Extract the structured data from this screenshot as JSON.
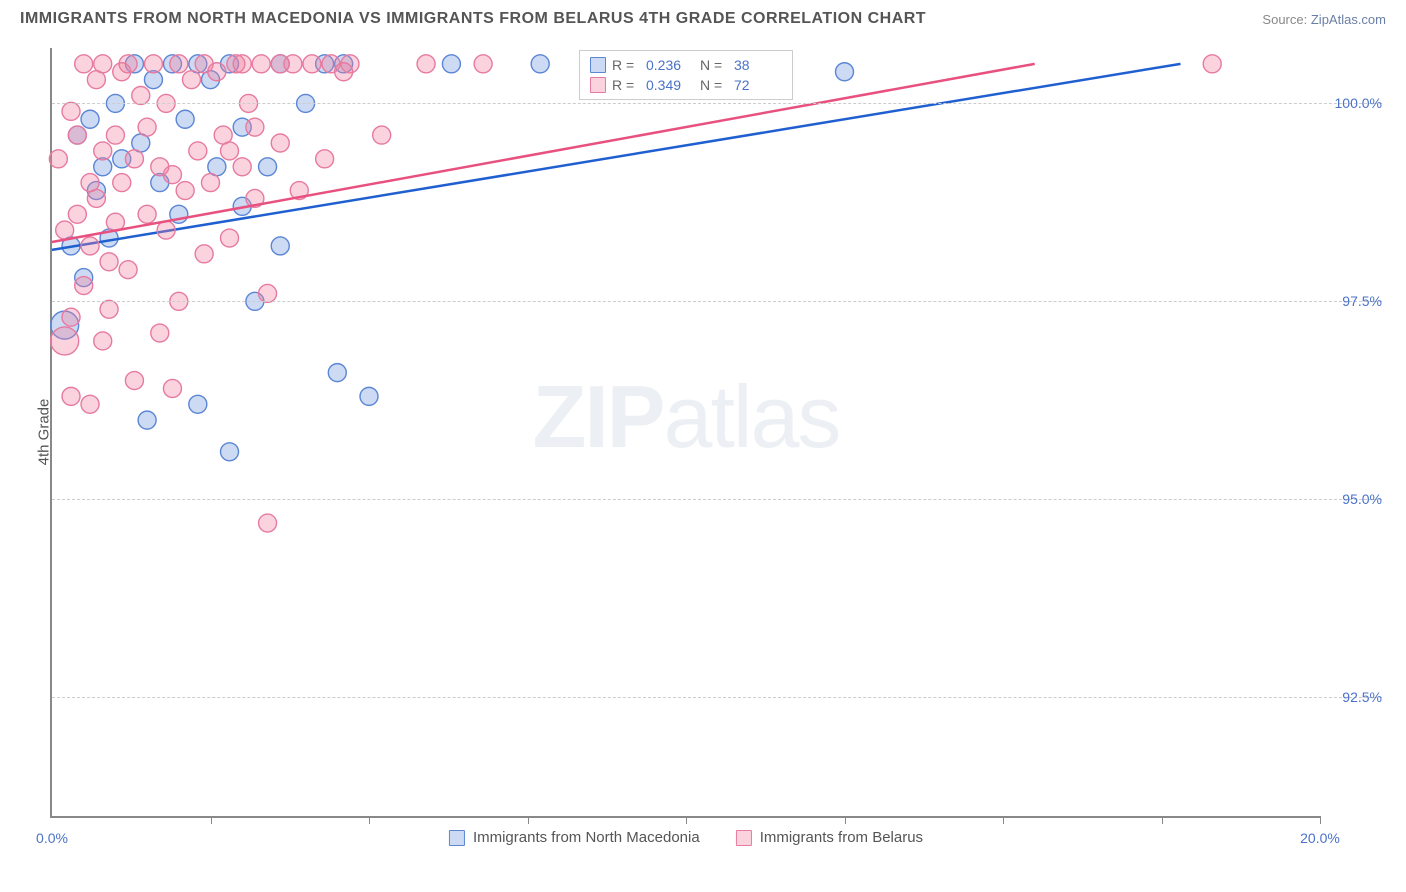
{
  "title": "IMMIGRANTS FROM NORTH MACEDONIA VS IMMIGRANTS FROM BELARUS 4TH GRADE CORRELATION CHART",
  "source_label": "Source:",
  "source_link": "ZipAtlas.com",
  "watermark_a": "ZIP",
  "watermark_b": "atlas",
  "chart": {
    "type": "scatter",
    "y_axis_label": "4th Grade",
    "xlim": [
      0.0,
      20.0
    ],
    "ylim": [
      91.0,
      100.7
    ],
    "x_ticks_minor": [
      2.5,
      5.0,
      7.5,
      10.0,
      12.5,
      15.0,
      17.5,
      20.0
    ],
    "x_tick_labels": [
      {
        "x": 0.0,
        "label": "0.0%"
      },
      {
        "x": 20.0,
        "label": "20.0%"
      }
    ],
    "y_grid": [
      {
        "y": 92.5,
        "label": "92.5%"
      },
      {
        "y": 95.0,
        "label": "95.0%"
      },
      {
        "y": 97.5,
        "label": "97.5%"
      },
      {
        "y": 100.0,
        "label": "100.0%"
      }
    ],
    "grid_color": "#cccccc",
    "background_color": "#ffffff",
    "label_color": "#4a72c9",
    "axis_color": "#888888",
    "legend_top": [
      {
        "r_label": "R =",
        "r": "0.236",
        "n_label": "N =",
        "n": "38"
      },
      {
        "r_label": "R =",
        "r": "0.349",
        "n_label": "N =",
        "n": "72"
      }
    ],
    "series": [
      {
        "name": "Immigrants from North Macedonia",
        "color_fill": "rgba(110,150,220,0.35)",
        "color_stroke": "#5b86d6",
        "marker_radius": 9,
        "trend": {
          "x1": 0.0,
          "y1": 98.15,
          "x2": 17.8,
          "y2": 100.5,
          "color": "#1f5fd0",
          "width": 2.5
        },
        "points": [
          [
            0.2,
            97.2,
            14
          ],
          [
            0.3,
            98.2,
            9
          ],
          [
            0.4,
            99.6,
            9
          ],
          [
            0.5,
            97.8,
            9
          ],
          [
            0.6,
            99.8,
            9
          ],
          [
            0.7,
            98.9,
            9
          ],
          [
            0.8,
            99.2,
            9
          ],
          [
            0.9,
            98.3,
            9
          ],
          [
            1.0,
            100.0,
            9
          ],
          [
            1.1,
            99.3,
            9
          ],
          [
            1.3,
            100.5,
            9
          ],
          [
            1.4,
            99.5,
            9
          ],
          [
            1.6,
            100.3,
            9
          ],
          [
            1.7,
            99.0,
            9
          ],
          [
            1.9,
            100.5,
            9
          ],
          [
            2.0,
            98.6,
            9
          ],
          [
            2.1,
            99.8,
            9
          ],
          [
            2.3,
            100.5,
            9
          ],
          [
            2.5,
            100.3,
            9
          ],
          [
            2.6,
            99.2,
            9
          ],
          [
            2.8,
            100.5,
            9
          ],
          [
            3.0,
            99.7,
            9
          ],
          [
            3.2,
            97.5,
            9
          ],
          [
            3.4,
            99.2,
            9
          ],
          [
            3.6,
            100.5,
            9
          ],
          [
            4.0,
            100.0,
            9
          ],
          [
            4.3,
            100.5,
            9
          ],
          [
            4.5,
            96.6,
            9
          ],
          [
            5.0,
            96.3,
            9
          ],
          [
            6.3,
            100.5,
            9
          ],
          [
            7.7,
            100.5,
            9
          ],
          [
            1.5,
            96.0,
            9
          ],
          [
            2.3,
            96.2,
            9
          ],
          [
            2.8,
            95.6,
            9
          ],
          [
            3.0,
            98.7,
            9
          ],
          [
            3.6,
            98.2,
            9
          ],
          [
            4.6,
            100.5,
            9
          ],
          [
            12.5,
            100.4,
            9
          ]
        ]
      },
      {
        "name": "Immigrants from Belarus",
        "color_fill": "rgba(240,130,160,0.35)",
        "color_stroke": "#e77aa0",
        "marker_radius": 9,
        "trend": {
          "x1": 0.0,
          "y1": 98.25,
          "x2": 15.5,
          "y2": 100.5,
          "color": "#e8517f",
          "width": 2.5
        },
        "points": [
          [
            0.1,
            99.3,
            9
          ],
          [
            0.2,
            98.4,
            9
          ],
          [
            0.2,
            97.0,
            14
          ],
          [
            0.3,
            99.9,
            9
          ],
          [
            0.3,
            96.3,
            9
          ],
          [
            0.4,
            98.6,
            9
          ],
          [
            0.4,
            99.6,
            9
          ],
          [
            0.5,
            100.5,
            9
          ],
          [
            0.5,
            97.7,
            9
          ],
          [
            0.6,
            98.2,
            9
          ],
          [
            0.6,
            99.0,
            9
          ],
          [
            0.7,
            100.3,
            9
          ],
          [
            0.7,
            98.8,
            9
          ],
          [
            0.8,
            99.4,
            9
          ],
          [
            0.8,
            100.5,
            9
          ],
          [
            0.9,
            97.4,
            9
          ],
          [
            0.9,
            98.0,
            9
          ],
          [
            1.0,
            99.6,
            9
          ],
          [
            1.0,
            98.5,
            9
          ],
          [
            1.1,
            100.4,
            9
          ],
          [
            1.1,
            99.0,
            9
          ],
          [
            1.2,
            100.5,
            9
          ],
          [
            1.2,
            97.9,
            9
          ],
          [
            1.3,
            99.3,
            9
          ],
          [
            1.4,
            100.1,
            9
          ],
          [
            1.5,
            99.7,
            9
          ],
          [
            1.5,
            98.6,
            9
          ],
          [
            1.6,
            100.5,
            9
          ],
          [
            1.7,
            99.2,
            9
          ],
          [
            1.7,
            97.1,
            9
          ],
          [
            1.8,
            98.4,
            9
          ],
          [
            1.8,
            100.0,
            9
          ],
          [
            1.9,
            99.1,
            9
          ],
          [
            2.0,
            100.5,
            9
          ],
          [
            2.0,
            97.5,
            9
          ],
          [
            2.1,
            98.9,
            9
          ],
          [
            2.2,
            100.3,
            9
          ],
          [
            2.3,
            99.4,
            9
          ],
          [
            2.4,
            100.5,
            9
          ],
          [
            2.4,
            98.1,
            9
          ],
          [
            2.5,
            99.0,
            9
          ],
          [
            2.6,
            100.4,
            9
          ],
          [
            2.7,
            99.6,
            9
          ],
          [
            2.8,
            98.3,
            9
          ],
          [
            2.9,
            100.5,
            9
          ],
          [
            3.0,
            99.2,
            9
          ],
          [
            3.1,
            100.0,
            9
          ],
          [
            3.2,
            98.8,
            9
          ],
          [
            3.3,
            100.5,
            9
          ],
          [
            3.4,
            97.6,
            9
          ],
          [
            3.6,
            99.5,
            9
          ],
          [
            3.8,
            100.5,
            9
          ],
          [
            3.9,
            98.9,
            9
          ],
          [
            4.1,
            100.5,
            9
          ],
          [
            4.3,
            99.3,
            9
          ],
          [
            4.4,
            100.5,
            9
          ],
          [
            4.7,
            100.5,
            9
          ],
          [
            3.4,
            94.7,
            9
          ],
          [
            3.0,
            100.5,
            9
          ],
          [
            3.6,
            100.5,
            9
          ],
          [
            5.9,
            100.5,
            9
          ],
          [
            1.3,
            96.5,
            9
          ],
          [
            1.9,
            96.4,
            9
          ],
          [
            0.6,
            96.2,
            9
          ],
          [
            0.3,
            97.3,
            9
          ],
          [
            0.8,
            97.0,
            9
          ],
          [
            2.8,
            99.4,
            9
          ],
          [
            3.2,
            99.7,
            9
          ],
          [
            4.6,
            100.4,
            9
          ],
          [
            5.2,
            99.6,
            9
          ],
          [
            6.8,
            100.5,
            9
          ],
          [
            18.3,
            100.5,
            9
          ]
        ]
      }
    ]
  }
}
